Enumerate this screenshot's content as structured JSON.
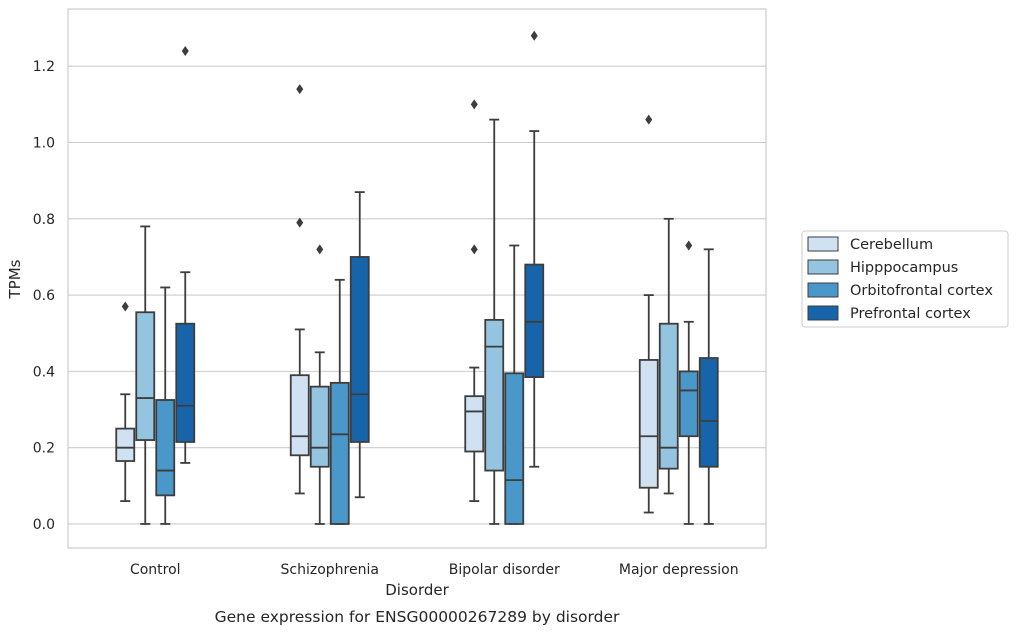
{
  "chart_data": {
    "type": "box",
    "caption": "Gene expression for ENSG00000267289 by disorder",
    "xlabel": "Disorder",
    "ylabel": "TPMs",
    "ylim": [
      -0.063,
      1.35
    ],
    "yticks": [
      0.0,
      0.2,
      0.4,
      0.6,
      0.8,
      1.0,
      1.2
    ],
    "ytick_labels": [
      "0.0",
      "0.2",
      "0.4",
      "0.6",
      "0.8",
      "1.0",
      "1.2"
    ],
    "categories": [
      "Control",
      "Schizophrenia",
      "Bipolar disorder",
      "Major depression"
    ],
    "grid": "horizontal",
    "legend_position": "right",
    "series": [
      {
        "name": "Cerebellum",
        "color": "#d0e1f2",
        "boxes": [
          {
            "whisker_low": 0.06,
            "q1": 0.165,
            "median": 0.2,
            "q3": 0.25,
            "whisker_high": 0.34,
            "outliers": [
              0.57
            ]
          },
          {
            "whisker_low": 0.08,
            "q1": 0.18,
            "median": 0.23,
            "q3": 0.39,
            "whisker_high": 0.51,
            "outliers": [
              0.79,
              1.14
            ]
          },
          {
            "whisker_low": 0.06,
            "q1": 0.19,
            "median": 0.295,
            "q3": 0.335,
            "whisker_high": 0.41,
            "outliers": [
              0.72,
              1.1
            ]
          },
          {
            "whisker_low": 0.03,
            "q1": 0.095,
            "median": 0.23,
            "q3": 0.43,
            "whisker_high": 0.6,
            "outliers": [
              1.06
            ]
          }
        ]
      },
      {
        "name": "Hipppocampus",
        "color": "#94c4df",
        "boxes": [
          {
            "whisker_low": 0.0,
            "q1": 0.22,
            "median": 0.33,
            "q3": 0.555,
            "whisker_high": 0.78,
            "outliers": []
          },
          {
            "whisker_low": 0.0,
            "q1": 0.15,
            "median": 0.2,
            "q3": 0.36,
            "whisker_high": 0.45,
            "outliers": [
              0.72
            ]
          },
          {
            "whisker_low": 0.0,
            "q1": 0.14,
            "median": 0.465,
            "q3": 0.535,
            "whisker_high": 1.06,
            "outliers": []
          },
          {
            "whisker_low": 0.08,
            "q1": 0.145,
            "median": 0.2,
            "q3": 0.525,
            "whisker_high": 0.8,
            "outliers": []
          }
        ]
      },
      {
        "name": "Orbitofrontal cortex",
        "color": "#4a98c9",
        "boxes": [
          {
            "whisker_low": 0.0,
            "q1": 0.075,
            "median": 0.14,
            "q3": 0.325,
            "whisker_high": 0.62,
            "outliers": []
          },
          {
            "whisker_low": 0.0,
            "q1": 0.0,
            "median": 0.235,
            "q3": 0.37,
            "whisker_high": 0.64,
            "outliers": []
          },
          {
            "whisker_low": 0.0,
            "q1": 0.0,
            "median": 0.115,
            "q3": 0.395,
            "whisker_high": 0.73,
            "outliers": []
          },
          {
            "whisker_low": 0.0,
            "q1": 0.23,
            "median": 0.35,
            "q3": 0.4,
            "whisker_high": 0.53,
            "outliers": [
              0.73
            ]
          }
        ]
      },
      {
        "name": "Prefrontal cortex",
        "color": "#1764ab",
        "boxes": [
          {
            "whisker_low": 0.16,
            "q1": 0.215,
            "median": 0.31,
            "q3": 0.525,
            "whisker_high": 0.66,
            "outliers": [
              1.24
            ]
          },
          {
            "whisker_low": 0.07,
            "q1": 0.215,
            "median": 0.34,
            "q3": 0.7,
            "whisker_high": 0.87,
            "outliers": []
          },
          {
            "whisker_low": 0.15,
            "q1": 0.385,
            "median": 0.53,
            "q3": 0.68,
            "whisker_high": 1.03,
            "outliers": [
              1.28
            ]
          },
          {
            "whisker_low": 0.0,
            "q1": 0.15,
            "median": 0.27,
            "q3": 0.435,
            "whisker_high": 0.72,
            "outliers": []
          }
        ]
      }
    ]
  }
}
